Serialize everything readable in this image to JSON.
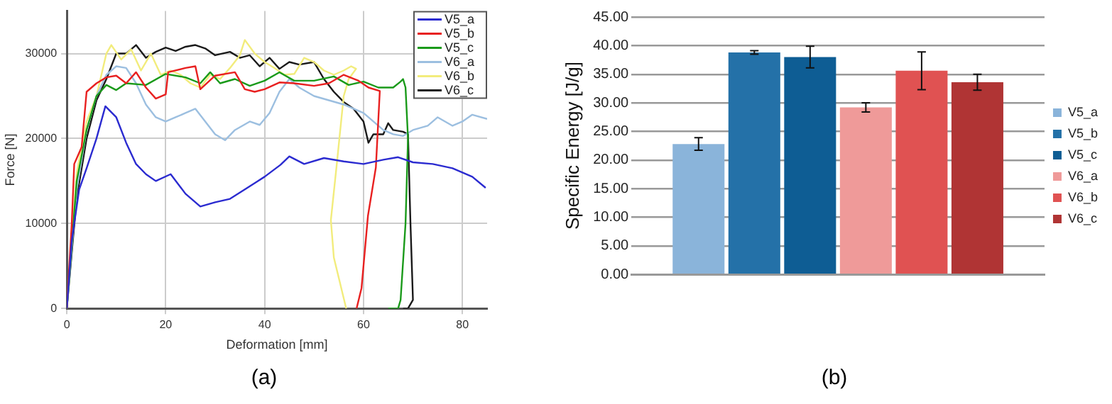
{
  "chart_data": [
    {
      "type": "line",
      "xlabel": "Deformation [mm]",
      "ylabel": "Force [N]",
      "xlim": [
        0,
        85
      ],
      "xticks": [
        0,
        20,
        40,
        60,
        80
      ],
      "ylim": [
        0,
        35000
      ],
      "yticks": [
        0,
        10000,
        20000,
        30000
      ],
      "grid": true,
      "legend": "top right",
      "marker": "none",
      "annotations": [
        "(a)"
      ],
      "series": [
        {
          "name": "V5_a",
          "color": "#2b2bd0",
          "x": [
            0,
            1,
            2.5,
            4,
            6,
            7.8,
            10,
            12,
            14,
            16,
            18,
            21,
            24,
            27,
            30,
            33,
            36,
            40,
            43.2,
            45,
            48,
            52,
            56,
            60,
            64,
            67,
            70,
            74,
            78,
            82,
            84.7
          ],
          "values": [
            0,
            8000,
            14000,
            16500,
            20000,
            23800,
            22500,
            19500,
            17000,
            15800,
            15000,
            15800,
            13500,
            12000,
            12500,
            12900,
            14000,
            15500,
            16900,
            17900,
            17000,
            17700,
            17300,
            17000,
            17500,
            17800,
            17200,
            17000,
            16500,
            15500,
            14200
          ]
        },
        {
          "name": "V5_b",
          "color": "#e82020",
          "x": [
            0,
            1,
            1.5,
            3,
            4,
            6,
            8,
            10,
            12,
            14,
            16,
            18,
            20,
            20.5,
            24,
            26,
            27,
            30,
            34,
            36,
            38,
            40,
            43,
            46,
            50,
            53,
            56,
            59,
            61,
            63.3,
            62.5,
            60.9,
            59.6,
            58.6
          ],
          "values": [
            0,
            10000,
            17000,
            19000,
            25500,
            26500,
            27200,
            27400,
            26500,
            27800,
            26000,
            24700,
            25200,
            27800,
            28300,
            28500,
            25800,
            27400,
            27800,
            25800,
            25500,
            25800,
            26600,
            26500,
            26200,
            26500,
            27500,
            26800,
            26000,
            25600,
            16600,
            10900,
            2400,
            0
          ]
        },
        {
          "name": "V5_c",
          "color": "#1a9a1a",
          "x": [
            0,
            2,
            4,
            6,
            8,
            10,
            12,
            16,
            20,
            24,
            27,
            29,
            31,
            34,
            37,
            40,
            43,
            46,
            50,
            54,
            57,
            60,
            63,
            66,
            67.5,
            68,
            68.5,
            69,
            68.5,
            67.5,
            67,
            65
          ],
          "values": [
            0,
            15000,
            21000,
            25000,
            26300,
            25700,
            26500,
            26300,
            27600,
            27200,
            26500,
            27800,
            26500,
            27000,
            26200,
            26800,
            27800,
            26800,
            26800,
            27300,
            26300,
            26700,
            26000,
            26000,
            26700,
            27000,
            26000,
            20000,
            10000,
            1000,
            0,
            0
          ]
        },
        {
          "name": "V6_a",
          "color": "#9cbfe0",
          "x": [
            0,
            2,
            4,
            6,
            8,
            10,
            12,
            14,
            16,
            18,
            20,
            22,
            24,
            26,
            28,
            30,
            32,
            34,
            37,
            39,
            41,
            43,
            45,
            47,
            50,
            53,
            56,
            58,
            60,
            62,
            64,
            66,
            68,
            70,
            73,
            75,
            78,
            80,
            82,
            85
          ],
          "values": [
            0,
            14000,
            21000,
            25000,
            27500,
            28500,
            28300,
            26500,
            24000,
            22500,
            22000,
            22500,
            23000,
            23500,
            22000,
            20500,
            19800,
            21000,
            22000,
            21600,
            23000,
            25500,
            27000,
            26000,
            25000,
            24500,
            24000,
            23500,
            23000,
            22000,
            21000,
            20500,
            20300,
            21000,
            21500,
            22500,
            21500,
            22000,
            22800,
            22300
          ]
        },
        {
          "name": "V6_b",
          "color": "#f2ec7c",
          "x": [
            0,
            2,
            4,
            6,
            8,
            9,
            11,
            13,
            15,
            17,
            19,
            21,
            23,
            25,
            27,
            29,
            31,
            33,
            35,
            36,
            38,
            40,
            42,
            44,
            46,
            48,
            50,
            52,
            54,
            56,
            57.5,
            58.5,
            57,
            56,
            54.6,
            53.4,
            54,
            55,
            56.5
          ],
          "values": [
            0,
            16000,
            22000,
            25000,
            30000,
            31000,
            29300,
            30500,
            28000,
            30000,
            27500,
            28000,
            27500,
            26500,
            26000,
            27500,
            27000,
            28300,
            29800,
            31600,
            30000,
            29000,
            28300,
            27500,
            27600,
            29500,
            29000,
            28000,
            27500,
            28000,
            28500,
            28200,
            27000,
            25000,
            17000,
            10400,
            6000,
            3600,
            0
          ]
        },
        {
          "name": "V6_c",
          "color": "#1a1a1a",
          "x": [
            0,
            2,
            4,
            6,
            8,
            10,
            12,
            14,
            16,
            18,
            20,
            22,
            24,
            26,
            28,
            30,
            33,
            35,
            37,
            39,
            41,
            43,
            45,
            47,
            50,
            52,
            54,
            56,
            58,
            60,
            61,
            62,
            64,
            65,
            66,
            68,
            69,
            69.5,
            70,
            69,
            68
          ],
          "values": [
            0,
            13000,
            20000,
            24500,
            27000,
            30000,
            30000,
            31000,
            29500,
            30200,
            30700,
            30300,
            30800,
            31000,
            30600,
            29800,
            30200,
            29500,
            29800,
            28500,
            29500,
            28200,
            29000,
            28700,
            29000,
            27000,
            25500,
            24300,
            23500,
            22000,
            19500,
            20500,
            20500,
            21800,
            21000,
            20800,
            20500,
            10000,
            1000,
            0,
            0
          ]
        }
      ]
    },
    {
      "type": "bar",
      "ylabel": "Specific Energy [J/g]",
      "categories": [
        null
      ],
      "ylim": [
        0,
        45
      ],
      "yticks": [
        {
          "value": 0,
          "label": "0.00"
        },
        {
          "value": 5,
          "label": "5.00"
        },
        {
          "value": 10,
          "label": "10.00"
        },
        {
          "value": 15,
          "label": "15.00"
        },
        {
          "value": 20,
          "label": "20.00"
        },
        {
          "value": 25,
          "label": "25.00"
        },
        {
          "value": 30,
          "label": "30.00"
        },
        {
          "value": 35,
          "label": "35.00"
        },
        {
          "value": 40,
          "label": "40.00"
        },
        {
          "value": 45,
          "label": "45.00"
        }
      ],
      "grid": "y",
      "legend": "right",
      "annotations": [
        "(b)"
      ],
      "series": [
        {
          "name": "V5_a",
          "color": "#8ab4da",
          "values": [
            22.8
          ],
          "errors": [
            1.1
          ]
        },
        {
          "name": "V5_b",
          "color": "#2471a8",
          "values": [
            38.8
          ],
          "errors": [
            0.3
          ]
        },
        {
          "name": "V5_c",
          "color": "#0e5d94",
          "values": [
            38.0
          ],
          "errors": [
            1.9
          ]
        },
        {
          "name": "V6_a",
          "color": "#ef9a99",
          "values": [
            29.2
          ],
          "errors": [
            0.8
          ]
        },
        {
          "name": "V6_b",
          "color": "#e05252",
          "values": [
            35.6
          ],
          "errors": [
            3.3
          ]
        },
        {
          "name": "V6_c",
          "color": "#b03434",
          "values": [
            33.6
          ],
          "errors": [
            1.4
          ]
        }
      ]
    }
  ]
}
